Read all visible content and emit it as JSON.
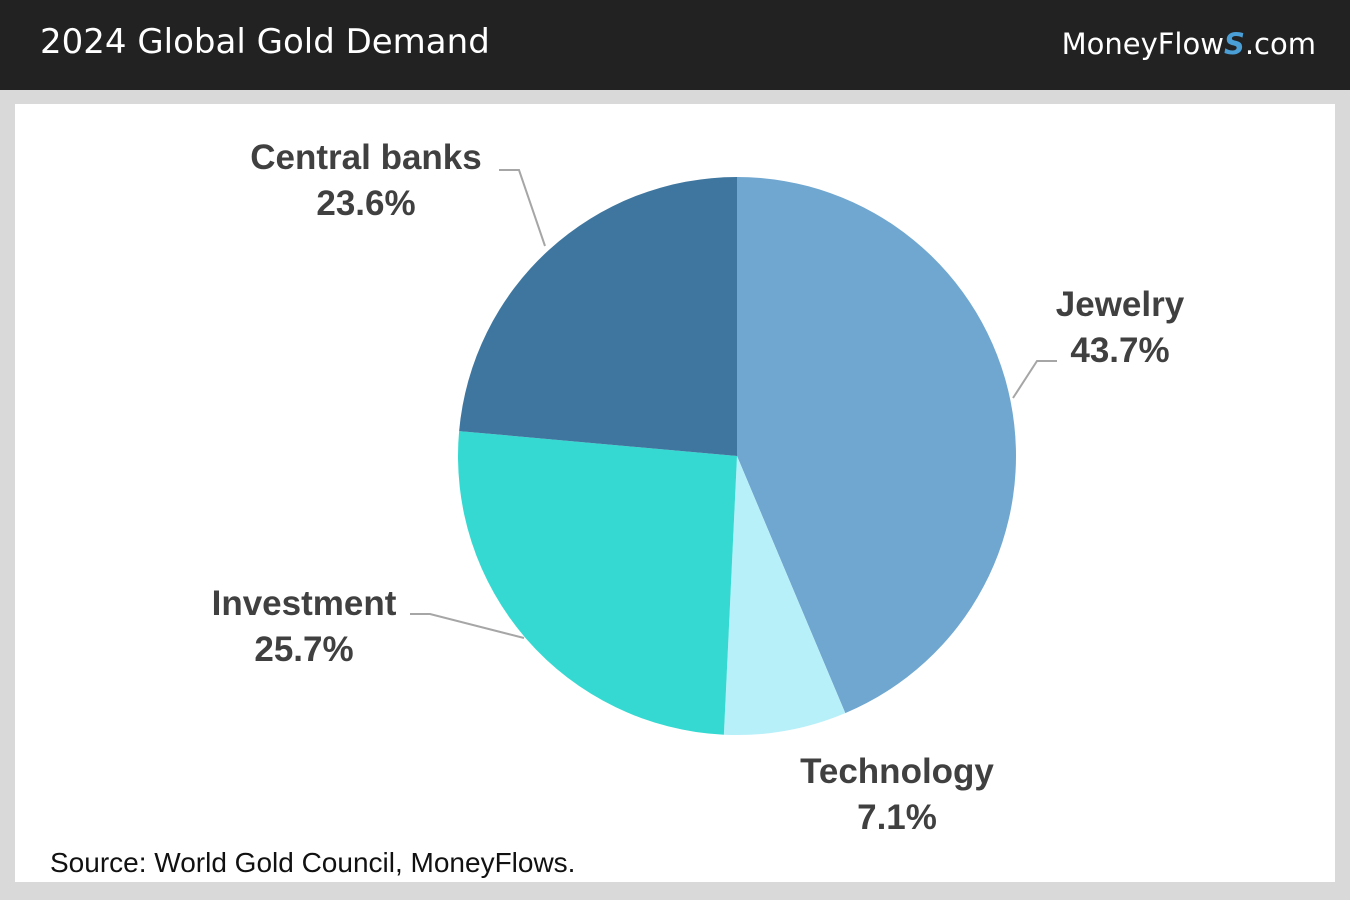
{
  "header": {
    "title": "2024 Global Gold Demand",
    "brand_prefix": "MoneyFlow",
    "brand_s": "S",
    "brand_suffix": ".com"
  },
  "source": "Source: World Gold Council, MoneyFlows.",
  "chart_data": {
    "type": "pie",
    "title": "2024 Global Gold Demand",
    "slices": [
      {
        "label": "Jewelry",
        "value": 43.7,
        "value_label": "43.7%",
        "color": "#6fa7d0"
      },
      {
        "label": "Technology",
        "value": 7.1,
        "value_label": "7.1%",
        "color": "#b8f0fa"
      },
      {
        "label": "Investment",
        "value": 25.7,
        "value_label": "25.7%",
        "color": "#35d9d1"
      },
      {
        "label": "Central banks",
        "value": 23.6,
        "value_label": "23.6%",
        "color": "#3f769f"
      }
    ],
    "start_angle": "12 o'clock",
    "direction": "clockwise",
    "label_color": "#404040",
    "leader_line_color": "#a6a6a6"
  }
}
